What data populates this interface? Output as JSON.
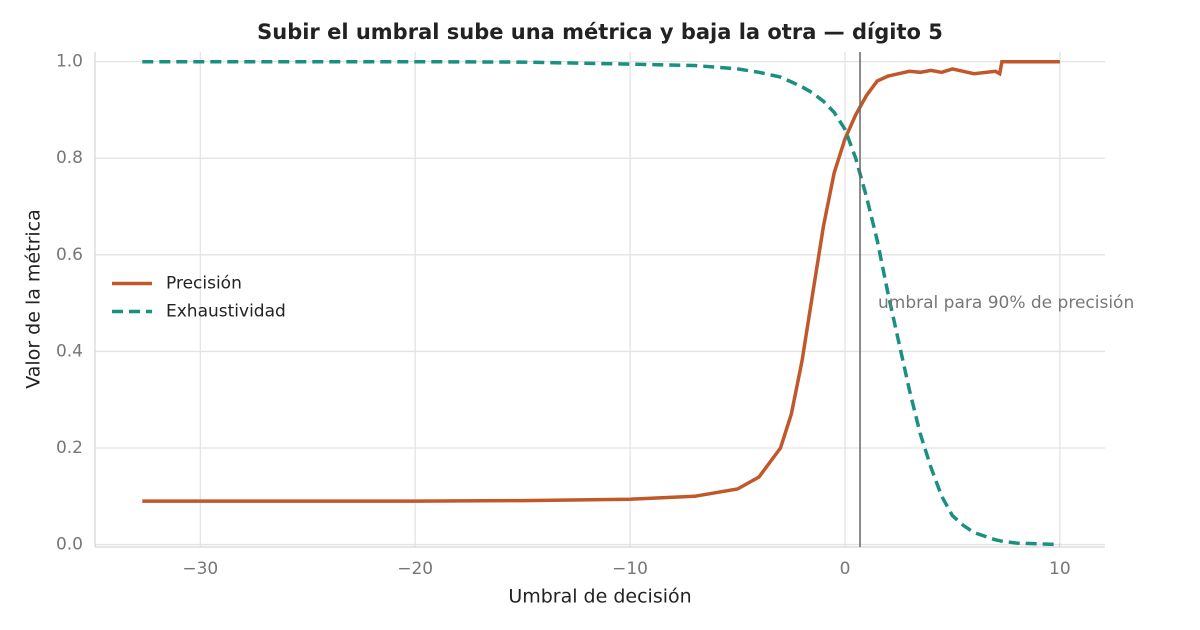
{
  "chart_data": {
    "type": "line",
    "title": "Subir el umbral sube una métrica y baja la otra — dígito 5",
    "x_label": "Umbral de decisión",
    "y_label": "Valor de la métrica",
    "x": [
      -32.7,
      -25,
      -20,
      -15,
      -10,
      -7,
      -5,
      -4,
      -3,
      -2.5,
      -2,
      -1.5,
      -1,
      -0.5,
      0,
      0.5,
      1,
      1.5,
      2,
      2.5,
      3,
      3.5,
      4,
      4.5,
      5,
      5.5,
      6,
      7,
      7.2,
      7.3,
      8,
      10
    ],
    "series": [
      {
        "name": "Precisión",
        "color": "#c0582a",
        "dash": false,
        "values": [
          0.09,
          0.09,
          0.09,
          0.091,
          0.094,
          0.1,
          0.115,
          0.14,
          0.2,
          0.27,
          0.38,
          0.52,
          0.66,
          0.77,
          0.84,
          0.89,
          0.93,
          0.96,
          0.97,
          0.975,
          0.98,
          0.978,
          0.982,
          0.978,
          0.985,
          0.98,
          0.975,
          0.98,
          0.975,
          1.0,
          1.0,
          1.0
        ]
      },
      {
        "name": "Exhaustividad",
        "color": "#1a9080",
        "dash": true,
        "values": [
          1.0,
          1.0,
          1.0,
          0.999,
          0.995,
          0.992,
          0.985,
          0.978,
          0.968,
          0.958,
          0.948,
          0.935,
          0.918,
          0.895,
          0.86,
          0.8,
          0.72,
          0.63,
          0.52,
          0.42,
          0.32,
          0.23,
          0.16,
          0.1,
          0.06,
          0.04,
          0.025,
          0.01,
          0.008,
          0.007,
          0.003,
          0.0
        ]
      }
    ],
    "threshold_x": 0.7,
    "annotation": "umbral para 90% de precisión",
    "xlim": [
      -34.9,
      12.1
    ],
    "ylim": [
      -0.005,
      1.02
    ],
    "xticks": [
      {
        "value": -30,
        "label": "−30"
      },
      {
        "value": -20,
        "label": "−20"
      },
      {
        "value": -10,
        "label": "−10"
      },
      0,
      10
    ],
    "yticks": [
      {
        "value": 0,
        "label": "0.0"
      },
      {
        "value": 0.2,
        "label": "0.2"
      },
      {
        "value": 0.4,
        "label": "0.4"
      },
      {
        "value": 0.6,
        "label": "0.6"
      },
      {
        "value": 0.8,
        "label": "0.8"
      },
      {
        "value": 1,
        "label": "1.0"
      }
    ],
    "grid": true,
    "legend": "center left"
  }
}
